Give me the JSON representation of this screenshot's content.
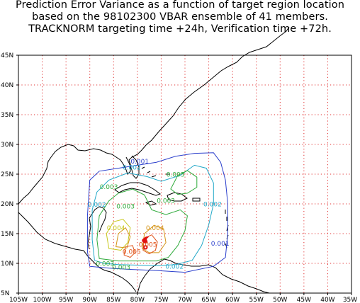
{
  "title_lines": [
    "Prediction Error Variance as a function of target region location",
    "based on the 98102300 VBAR ensemble of 41 members.",
    "TRACKNORM targeting time +24h, Verification time +72h."
  ],
  "axes": {
    "lon_ticks": [
      "105W",
      "100W",
      "95W",
      "90W",
      "85W",
      "80W",
      "75W",
      "70W",
      "65W",
      "60W",
      "55W",
      "50W",
      "45W",
      "40W",
      "35W"
    ],
    "lat_ticks": [
      "5N",
      "10N",
      "15N",
      "20N",
      "25N",
      "30N",
      "35N",
      "40N",
      "45N"
    ],
    "lon_range": [
      -105,
      -35
    ],
    "lat_range": [
      5,
      45
    ],
    "grid": "dotted red, every 5 degrees"
  },
  "contour_labels": [
    {
      "text": "0.001",
      "color": "#2b3fcc",
      "lon": -79.5,
      "lat": 26.8
    },
    {
      "text": "0.002",
      "color": "#22a8c8",
      "lon": -81.2,
      "lat": 25.8
    },
    {
      "text": "0.003",
      "color": "#2eaa3a",
      "lon": -72.0,
      "lat": 24.6
    },
    {
      "text": "0.003",
      "color": "#2eaa3a",
      "lon": -86.0,
      "lat": 22.5
    },
    {
      "text": "0.002",
      "color": "#22a8c8",
      "lon": -88.5,
      "lat": 19.5
    },
    {
      "text": "0.003",
      "color": "#2eaa3a",
      "lon": -82.5,
      "lat": 19.2
    },
    {
      "text": "0.003",
      "color": "#2eaa3a",
      "lon": -74.0,
      "lat": 20.2
    },
    {
      "text": "0.002",
      "color": "#22a8c8",
      "lon": -64.2,
      "lat": 19.6
    },
    {
      "text": "0.004",
      "color": "#c8c81e",
      "lon": -84.5,
      "lat": 15.6
    },
    {
      "text": "0.004",
      "color": "#d49418",
      "lon": -76.3,
      "lat": 15.6
    },
    {
      "text": "0.005",
      "color": "#e05016",
      "lon": -77.8,
      "lat": 12.8
    },
    {
      "text": "0.005",
      "color": "#e05016",
      "lon": -81.2,
      "lat": 11.6
    },
    {
      "text": "0.001",
      "color": "#2b3fcc",
      "lon": -62.6,
      "lat": 13.0
    },
    {
      "text": "0.003",
      "color": "#2eaa3a",
      "lon": -86.8,
      "lat": 9.6
    },
    {
      "text": "0.003",
      "color": "#2eaa3a",
      "lon": -83.4,
      "lat": 9.0
    },
    {
      "text": "0.002",
      "color": "#22a8c8",
      "lon": -72.2,
      "lat": 9.1
    }
  ],
  "contour_colors": {
    "0.001": "#2b3fcc",
    "0.002": "#22a8c8",
    "0.003": "#2eaa3a",
    "0.004": "#c8c81e",
    "0.004b": "#d49418",
    "0.005": "#e05016",
    "max": "#e01010"
  }
}
